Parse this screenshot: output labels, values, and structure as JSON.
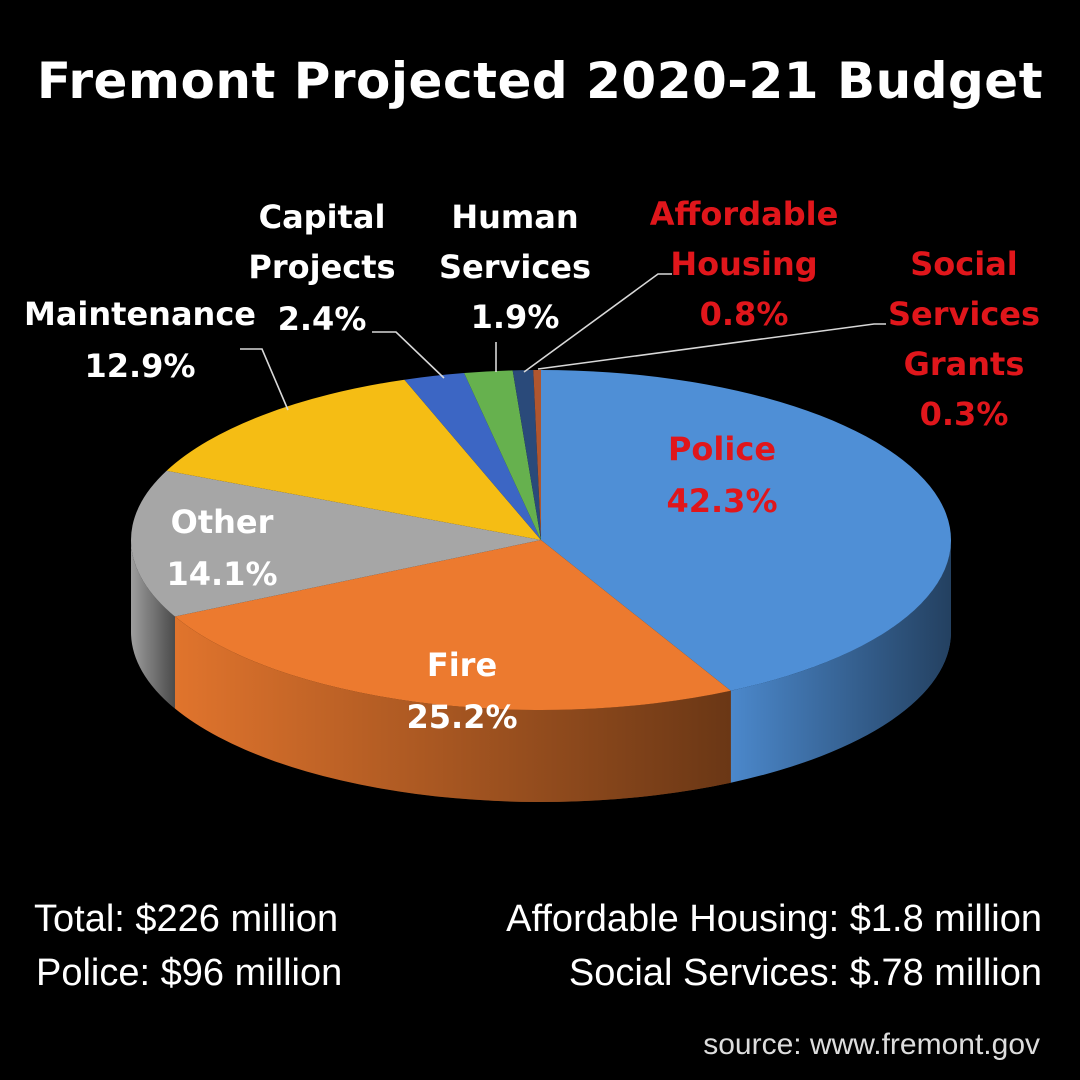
{
  "colors": {
    "background": "#000000",
    "police": "#4f8fd6",
    "fire": "#ec7a2f",
    "other": "#a6a6a6",
    "maintenance": "#f5bd14",
    "capital_projects": "#3c66c4",
    "human_services": "#66b14e",
    "affordable_housing": "#2a4a7a",
    "social_services_grants": "#b0562f",
    "highlight_text": "#e0161b"
  },
  "chart_data": {
    "type": "pie",
    "title": "Fremont Projected 2020-21 Budget",
    "slices": [
      {
        "key": "police",
        "label": "Police",
        "value": 42.3,
        "value_label": "42.3%",
        "highlight": true
      },
      {
        "key": "fire",
        "label": "Fire",
        "value": 25.2,
        "value_label": "25.2%",
        "highlight": false
      },
      {
        "key": "other",
        "label": "Other",
        "value": 14.1,
        "value_label": "14.1%",
        "highlight": false
      },
      {
        "key": "maintenance",
        "label": "Maintenance",
        "value": 12.9,
        "value_label": "12.9%",
        "highlight": false
      },
      {
        "key": "capital_projects",
        "label": "Capital Projects",
        "value": 2.4,
        "value_label": "2.4%",
        "highlight": false
      },
      {
        "key": "human_services",
        "label": "Human Services",
        "value": 1.9,
        "value_label": "1.9%",
        "highlight": false
      },
      {
        "key": "affordable_housing",
        "label": "Affordable Housing",
        "value": 0.8,
        "value_label": "0.8%",
        "highlight": true
      },
      {
        "key": "social_services_grants",
        "label": "Social Services Grants",
        "value": 0.3,
        "value_label": "0.3%",
        "highlight": true
      }
    ]
  },
  "footer": {
    "total": "Total: $226 million",
    "police": "Police: $96 million",
    "affordable_housing": "Affordable Housing: $1.8 million",
    "social_services": "Social Services: $.78 million",
    "source": "source: www.fremont.gov"
  }
}
